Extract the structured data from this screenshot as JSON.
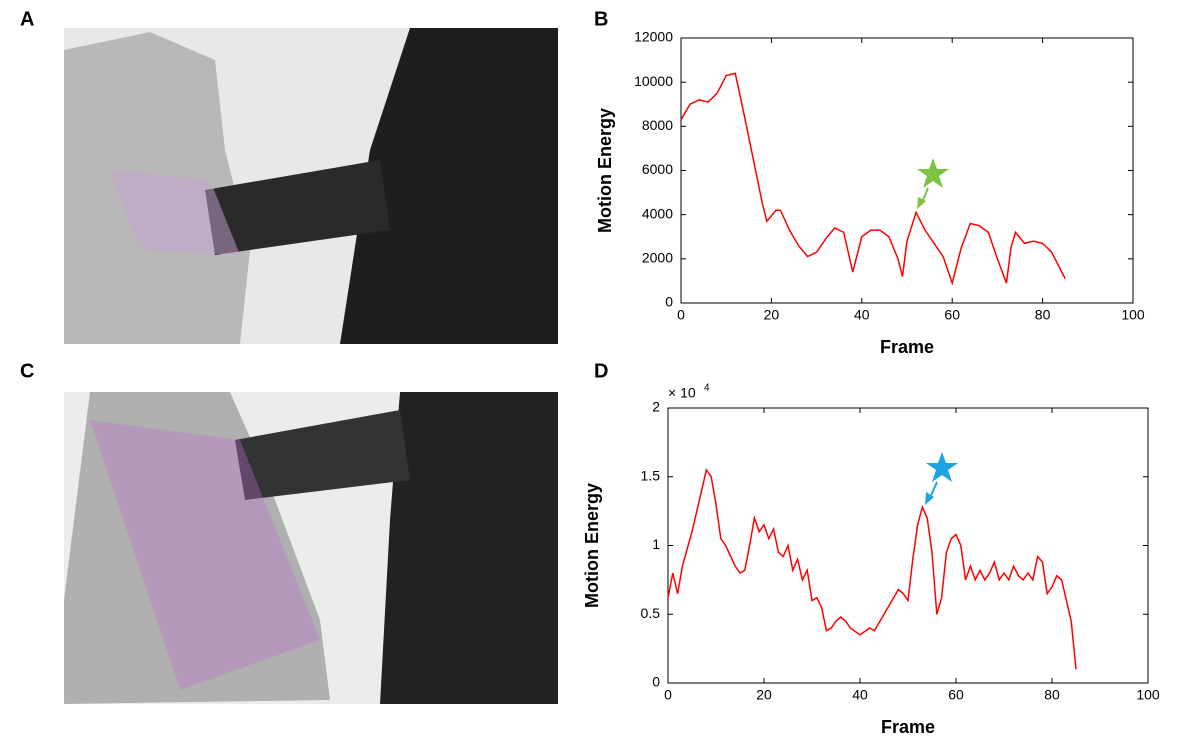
{
  "panel_labels": [
    "A",
    "B",
    "C",
    "D"
  ],
  "chart_data": [
    {
      "type": "line",
      "xlabel": "Frame",
      "ylabel": "Motion Energy",
      "color": "#ff0000",
      "x": [
        0,
        2,
        4,
        6,
        8,
        10,
        12,
        14,
        16,
        18,
        19,
        21,
        22,
        24,
        26,
        28,
        30,
        32,
        34,
        36,
        38,
        40,
        42,
        44,
        46,
        48,
        49,
        50,
        52,
        54,
        56,
        58,
        60,
        62,
        64,
        66,
        68,
        70,
        72,
        73,
        74,
        76,
        78,
        80,
        82,
        84,
        85
      ],
      "values": [
        8300,
        9000,
        9200,
        9100,
        9500,
        10300,
        10400,
        8500,
        6500,
        4500,
        3700,
        4200,
        4200,
        3300,
        2600,
        2100,
        2300,
        2900,
        3400,
        3200,
        1400,
        3000,
        3300,
        3300,
        3000,
        2000,
        1200,
        2800,
        4100,
        3300,
        2700,
        2100,
        900,
        2500,
        3600,
        3500,
        3200,
        2000,
        900,
        2500,
        3200,
        2700,
        2800,
        2700,
        2300,
        1500,
        1100
      ],
      "xlim": [
        0,
        100
      ],
      "xticks": [
        0,
        20,
        40,
        60,
        80,
        100
      ],
      "ylim": [
        0,
        12000
      ],
      "yticks": [
        0,
        2000,
        4000,
        6000,
        8000,
        10000,
        12000
      ]
    },
    {
      "type": "line",
      "xlabel": "Frame",
      "ylabel": "Motion Energy",
      "color": "#ff0000",
      "y_offset_text": "× 10",
      "y_offset_exponent": "4",
      "x": [
        0,
        1,
        2,
        3,
        5,
        7,
        8,
        9,
        10,
        11,
        12,
        14,
        15,
        16,
        17,
        18,
        19,
        20,
        21,
        22,
        23,
        24,
        25,
        26,
        27,
        28,
        29,
        30,
        31,
        32,
        33,
        34,
        35,
        36,
        37,
        38,
        40,
        42,
        43,
        45,
        47,
        48,
        49,
        50,
        51,
        52,
        53,
        54,
        55,
        56,
        57,
        58,
        59,
        60,
        61,
        62,
        63,
        64,
        65,
        66,
        67,
        68,
        69,
        70,
        71,
        72,
        73,
        74,
        75,
        76,
        77,
        78,
        79,
        80,
        81,
        82,
        83,
        84,
        85
      ],
      "values": [
        0.62,
        0.8,
        0.65,
        0.85,
        1.1,
        1.4,
        1.55,
        1.5,
        1.3,
        1.05,
        1.0,
        0.85,
        0.8,
        0.82,
        1.0,
        1.2,
        1.1,
        1.15,
        1.05,
        1.12,
        0.95,
        0.92,
        1.0,
        0.82,
        0.9,
        0.75,
        0.82,
        0.6,
        0.62,
        0.55,
        0.38,
        0.4,
        0.45,
        0.48,
        0.45,
        0.4,
        0.35,
        0.4,
        0.38,
        0.5,
        0.62,
        0.68,
        0.65,
        0.6,
        0.9,
        1.15,
        1.28,
        1.2,
        0.95,
        0.5,
        0.62,
        0.95,
        1.05,
        1.08,
        1.0,
        0.75,
        0.85,
        0.75,
        0.82,
        0.75,
        0.8,
        0.88,
        0.75,
        0.8,
        0.75,
        0.85,
        0.78,
        0.75,
        0.8,
        0.75,
        0.92,
        0.88,
        0.65,
        0.7,
        0.78,
        0.75,
        0.6,
        0.45,
        0.1
      ],
      "xlim": [
        0,
        100
      ],
      "xticks": [
        0,
        20,
        40,
        60,
        80,
        100
      ],
      "ylim": [
        0,
        2
      ],
      "yticks": [
        0,
        0.5,
        1,
        1.5,
        2
      ]
    }
  ]
}
